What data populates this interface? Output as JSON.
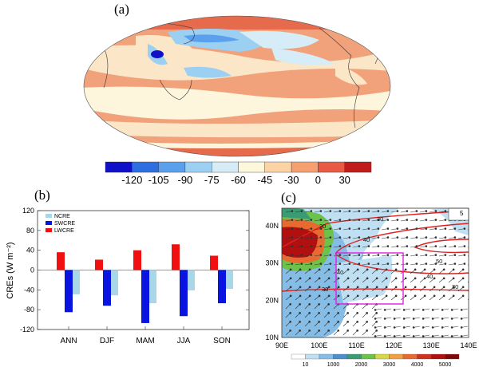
{
  "panel_a": {
    "label": "(a)",
    "colorbar_ticks": [
      "-120",
      "-105",
      "-90",
      "-75",
      "-60",
      "-45",
      "-30",
      "0",
      "30"
    ],
    "colorbar_colors": [
      "#1010c8",
      "#2d6fe0",
      "#5aa0ec",
      "#9cd0f2",
      "#d6ecf6",
      "#fdf7dc",
      "#fbd3a4",
      "#f6a070",
      "#e85a44",
      "#c01c1c"
    ]
  },
  "panel_b": {
    "label": "(b)"
  },
  "panel_c": {
    "label": "(c)",
    "y_ticks": [
      "10N",
      "20N",
      "30N",
      "40N"
    ],
    "x_ticks": [
      "90E",
      "100E",
      "110E",
      "120E",
      "130E",
      "140E"
    ],
    "contour_labels": [
      "30",
      "30",
      "40",
      "40",
      "50",
      "40",
      "30",
      "30"
    ],
    "ref_vector": "5",
    "colorbar_ticks": [
      "10",
      "1000",
      "2000",
      "3000",
      "4000",
      "5000"
    ],
    "colorbar_colors": [
      "#ffffff",
      "#bfe0f2",
      "#85bde6",
      "#4b8fcc",
      "#3a9c74",
      "#6cc24a",
      "#d6d84a",
      "#f0a040",
      "#e86a30",
      "#d03020",
      "#b01010",
      "#800808"
    ],
    "box_color": "#e020e0",
    "contour_color": "#e02020"
  },
  "chart_data": {
    "type": "bar",
    "title": "",
    "xlabel": "",
    "ylabel": "CREs (W m⁻²)",
    "ylim": [
      -120,
      120
    ],
    "y_ticks": [
      "120",
      "80",
      "40",
      "0",
      "-40",
      "-80",
      "-120"
    ],
    "categories": [
      "ANN",
      "DJF",
      "MAM",
      "JJA",
      "SON"
    ],
    "legend_position": "top-left",
    "series": [
      {
        "name": "NCRE",
        "color": "#a8d8e8",
        "values": [
          -49,
          -51,
          -67,
          -41,
          -38
        ]
      },
      {
        "name": "SWCRE",
        "color": "#0a14e0",
        "values": [
          -85,
          -72,
          -107,
          -93,
          -67
        ]
      },
      {
        "name": "LWCRE",
        "color": "#f01010",
        "values": [
          36,
          21,
          40,
          52,
          29
        ]
      }
    ]
  }
}
